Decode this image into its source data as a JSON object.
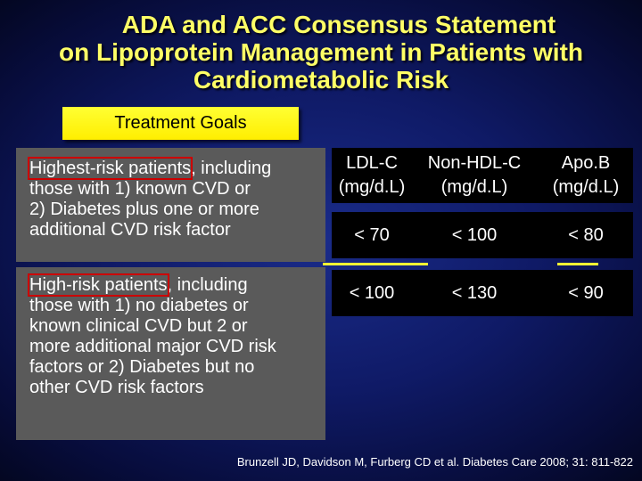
{
  "title": {
    "line1": "ADA and ACC Consensus Statement",
    "line2": "on Lipoprotein Management in Patients with",
    "line3": "Cardiometabolic Risk"
  },
  "goals_label": "Treatment Goals",
  "groups": [
    {
      "highlight": "Highest-risk patients",
      "rest": ", including",
      "lines": [
        "those with 1) known CVD or",
        "2) Diabetes plus one or more",
        "additional CVD risk factor"
      ]
    },
    {
      "highlight": "High-risk patients",
      "rest": ", including",
      "lines": [
        "those with 1) no diabetes or",
        "known clinical CVD but 2 or",
        "more additional major CVD risk",
        "factors or 2) Diabetes but no",
        "other CVD risk factors"
      ]
    }
  ],
  "columns": [
    {
      "name": "LDL-C",
      "unit": "(mg/d.L)"
    },
    {
      "name": "Non-HDL-C",
      "unit": "(mg/d.L)"
    },
    {
      "name": "Apo.B",
      "unit": "(mg/d.L)"
    }
  ],
  "rows": [
    [
      "< 70",
      "< 100",
      "< 80"
    ],
    [
      "< 100",
      "< 130",
      "< 90"
    ]
  ],
  "colors": {
    "title": "#ffff66",
    "goals_bg": "#ffff33",
    "highlight_border": "#cc0000",
    "risk_box_bg": "#5a5a5a"
  },
  "reference": "Brunzell JD, Davidson M, Furberg CD et al. Diabetes Care 2008; 31: 811-822"
}
